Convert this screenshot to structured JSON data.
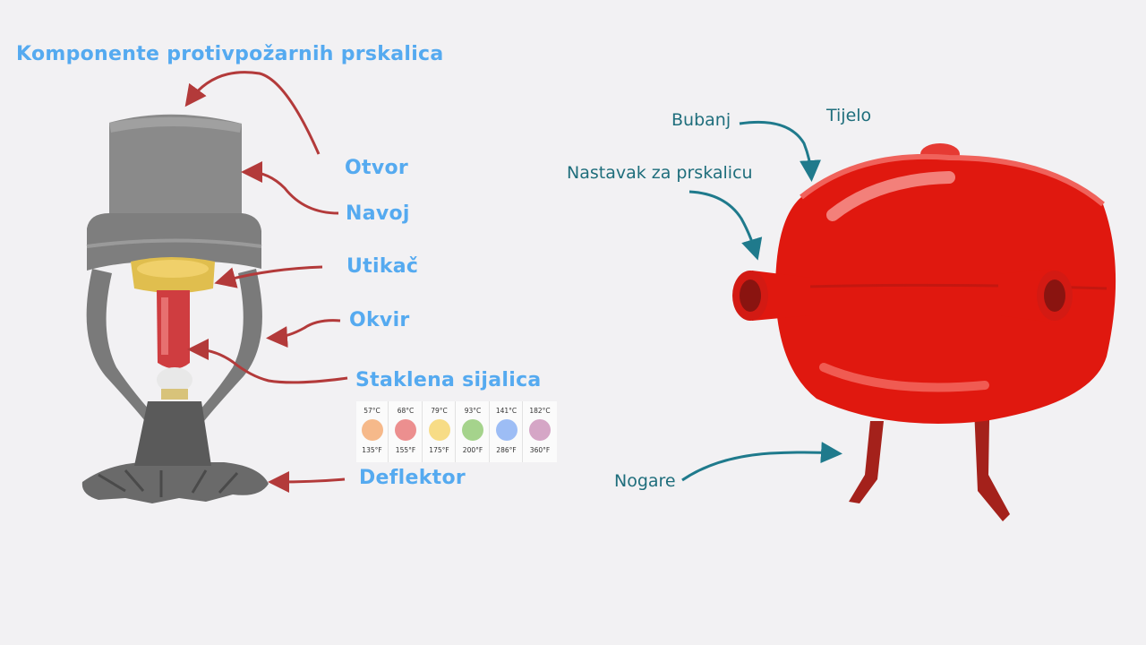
{
  "left_diagram": {
    "title": "Komponente protivpožarnih prskalica",
    "labels": {
      "otvor": "Otvor",
      "navoj": "Navoj",
      "utikac": "Utikač",
      "okvir": "Okvir",
      "staklena_sijalica": "Staklena sijalica",
      "deflektor": "Deflektor"
    },
    "temperature_chart": [
      {
        "celsius": "57°C",
        "fahrenheit": "135°F",
        "color": "#f6b98a"
      },
      {
        "celsius": "68°C",
        "fahrenheit": "155°F",
        "color": "#ec8f8f"
      },
      {
        "celsius": "79°C",
        "fahrenheit": "175°F",
        "color": "#f7dc86"
      },
      {
        "celsius": "93°C",
        "fahrenheit": "200°F",
        "color": "#a5d38c"
      },
      {
        "celsius": "141°C",
        "fahrenheit": "286°F",
        "color": "#9dbdf5"
      },
      {
        "celsius": "182°C",
        "fahrenheit": "360°F",
        "color": "#d5a6c6"
      }
    ],
    "label_color": "#55aaf0",
    "arrow_color": "#b33a3a"
  },
  "right_diagram": {
    "labels": {
      "bubanj": "Bubanj",
      "tijelo": "Tijelo",
      "nastavak": "Nastavak za prskalicu",
      "nogare": "Nogare"
    },
    "label_color": "#1f6e7c",
    "arrow_color": "#1f7a8c",
    "tank_color": "#e0180f"
  }
}
